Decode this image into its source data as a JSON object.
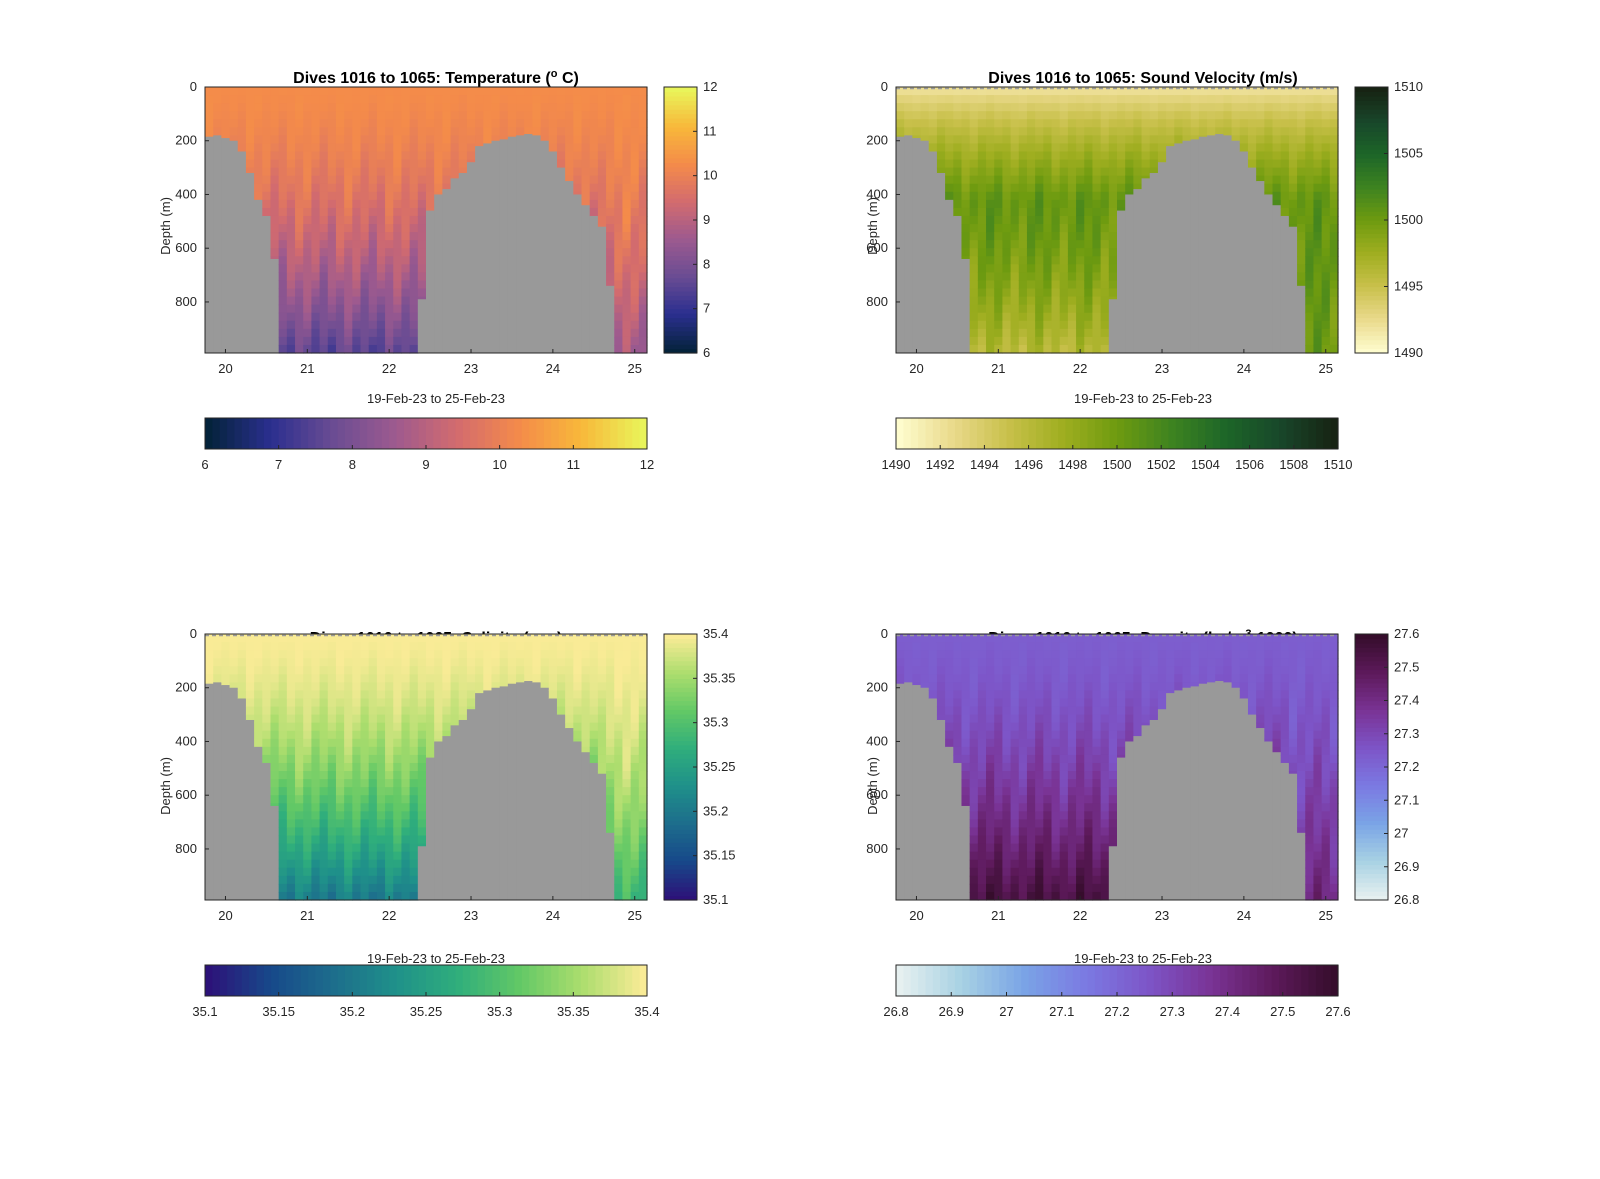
{
  "figure": {
    "background": "#ffffff",
    "land_color": "#999999"
  },
  "chart_data": [
    {
      "type": "heatmap",
      "title_text": "Dives 1016 to 1065: Temperature (",
      "title_sup": "o",
      "title_after": " C)",
      "xlabel": "19-Feb-23 to 25-Feb-23",
      "ylabel": "Depth (m)",
      "x_ticks": [
        "20",
        "21",
        "22",
        "23",
        "24",
        "25"
      ],
      "y_ticks": [
        "0",
        "200",
        "400",
        "600",
        "800"
      ],
      "xlim": [
        19.75,
        25.15
      ],
      "ylim": [
        0,
        990
      ],
      "y_reversed": true,
      "variable": "Temperature",
      "units": "deg C",
      "colormap": "thermal",
      "clim": [
        6,
        12
      ],
      "colorbar_right_ticks": [
        "6",
        "7",
        "8",
        "9",
        "10",
        "11",
        "12"
      ],
      "colorbar_bottom_ticks": [
        "6",
        "7",
        "8",
        "9",
        "10",
        "11",
        "12"
      ],
      "profile": {
        "surface": 10.3,
        "deep": 7.5,
        "deep_alt": 8.6
      },
      "dashed_surface": false
    },
    {
      "type": "heatmap",
      "title_text": "Dives 1016 to 1065: Sound Velocity (m/s)",
      "title_sup": "",
      "title_after": "",
      "xlabel": "19-Feb-23 to 25-Feb-23",
      "ylabel": "Depth (m)",
      "x_ticks": [
        "20",
        "21",
        "22",
        "23",
        "24",
        "25"
      ],
      "y_ticks": [
        "0",
        "200",
        "400",
        "600",
        "800"
      ],
      "xlim": [
        19.75,
        25.15
      ],
      "ylim": [
        0,
        990
      ],
      "y_reversed": true,
      "variable": "Sound Velocity",
      "units": "m/s",
      "colormap": "speed",
      "clim": [
        1490,
        1510
      ],
      "colorbar_right_ticks": [
        "1490",
        "1495",
        "1500",
        "1505",
        "1510"
      ],
      "colorbar_bottom_ticks": [
        "1490",
        "1492",
        "1494",
        "1496",
        "1498",
        "1500",
        "1502",
        "1504",
        "1506",
        "1508",
        "1510"
      ],
      "profile": {
        "surface": 1491.5,
        "mid": 1500.5,
        "deep": 1496.0,
        "deep_alt": 1500.0
      },
      "dashed_surface": true
    },
    {
      "type": "heatmap",
      "title_text": "Dives 1016 to 1065: Salinity (psu)",
      "title_sup": "",
      "title_after": "",
      "xlabel": "19-Feb-23 to 25-Feb-23",
      "ylabel": "Depth (m)",
      "x_ticks": [
        "20",
        "21",
        "22",
        "23",
        "24",
        "25"
      ],
      "y_ticks": [
        "0",
        "200",
        "400",
        "600",
        "800"
      ],
      "xlim": [
        19.75,
        25.15
      ],
      "ylim": [
        0,
        990
      ],
      "y_reversed": true,
      "variable": "Salinity",
      "units": "psu",
      "colormap": "viridis",
      "clim": [
        35.1,
        35.4
      ],
      "colorbar_right_ticks": [
        "35.1",
        "35.15",
        "35.2",
        "35.25",
        "35.3",
        "35.35",
        "35.4"
      ],
      "colorbar_bottom_ticks": [
        "35.1",
        "35.15",
        "35.2",
        "35.25",
        "35.3",
        "35.35",
        "35.4"
      ],
      "profile": {
        "surface": 35.4,
        "deep": 35.2,
        "deep_alt": 35.28
      },
      "dashed_surface": true
    },
    {
      "type": "heatmap",
      "title_text": "Dives 1016 to 1065: Density (kg/m",
      "title_sup": "3",
      "title_after": "-1000)",
      "xlabel": "19-Feb-23 to 25-Feb-23",
      "ylabel": "Depth (m)",
      "x_ticks": [
        "20",
        "21",
        "22",
        "23",
        "24",
        "25"
      ],
      "y_ticks": [
        "0",
        "200",
        "400",
        "600",
        "800"
      ],
      "xlim": [
        19.75,
        25.15
      ],
      "ylim": [
        0,
        990
      ],
      "y_reversed": true,
      "variable": "Density",
      "units": "kg/m3-1000",
      "colormap": "dense",
      "clim": [
        26.8,
        27.6
      ],
      "colorbar_right_ticks": [
        "26.8",
        "26.9",
        "27",
        "27.1",
        "27.2",
        "27.3",
        "27.4",
        "27.5",
        "27.6"
      ],
      "colorbar_bottom_ticks": [
        "26.8",
        "26.9",
        "27",
        "27.1",
        "27.2",
        "27.3",
        "27.4",
        "27.5",
        "27.6"
      ],
      "profile": {
        "surface": 27.23,
        "deep": 27.55,
        "deep_alt": 27.42
      },
      "dashed_surface": true
    }
  ],
  "land_mask": {
    "description_units": "x in days (Feb 2023), depth in m; columns deeper than this depth are land/no-data",
    "x": [
      19.75,
      19.85,
      19.95,
      20.05,
      20.15,
      20.25,
      20.35,
      20.45,
      20.55,
      20.65,
      20.75,
      20.85,
      20.95,
      21.05,
      21.15,
      21.25,
      21.35,
      21.45,
      21.55,
      21.65,
      21.75,
      21.85,
      21.95,
      22.05,
      22.15,
      22.25,
      22.35,
      22.45,
      22.55,
      22.65,
      22.75,
      22.85,
      22.95,
      23.05,
      23.15,
      23.25,
      23.35,
      23.45,
      23.55,
      23.65,
      23.75,
      23.85,
      23.95,
      24.05,
      24.15,
      24.25,
      24.35,
      24.45,
      24.55,
      24.65,
      24.75,
      24.85,
      24.95,
      25.05,
      25.15
    ],
    "water_depth": [
      185,
      180,
      190,
      200,
      240,
      320,
      420,
      480,
      640,
      990,
      990,
      990,
      990,
      990,
      990,
      990,
      990,
      990,
      990,
      990,
      990,
      990,
      990,
      990,
      990,
      990,
      790,
      460,
      400,
      380,
      340,
      320,
      280,
      220,
      210,
      200,
      195,
      185,
      180,
      175,
      180,
      200,
      240,
      300,
      350,
      400,
      440,
      480,
      520,
      740,
      990,
      990,
      990,
      990,
      990
    ]
  }
}
